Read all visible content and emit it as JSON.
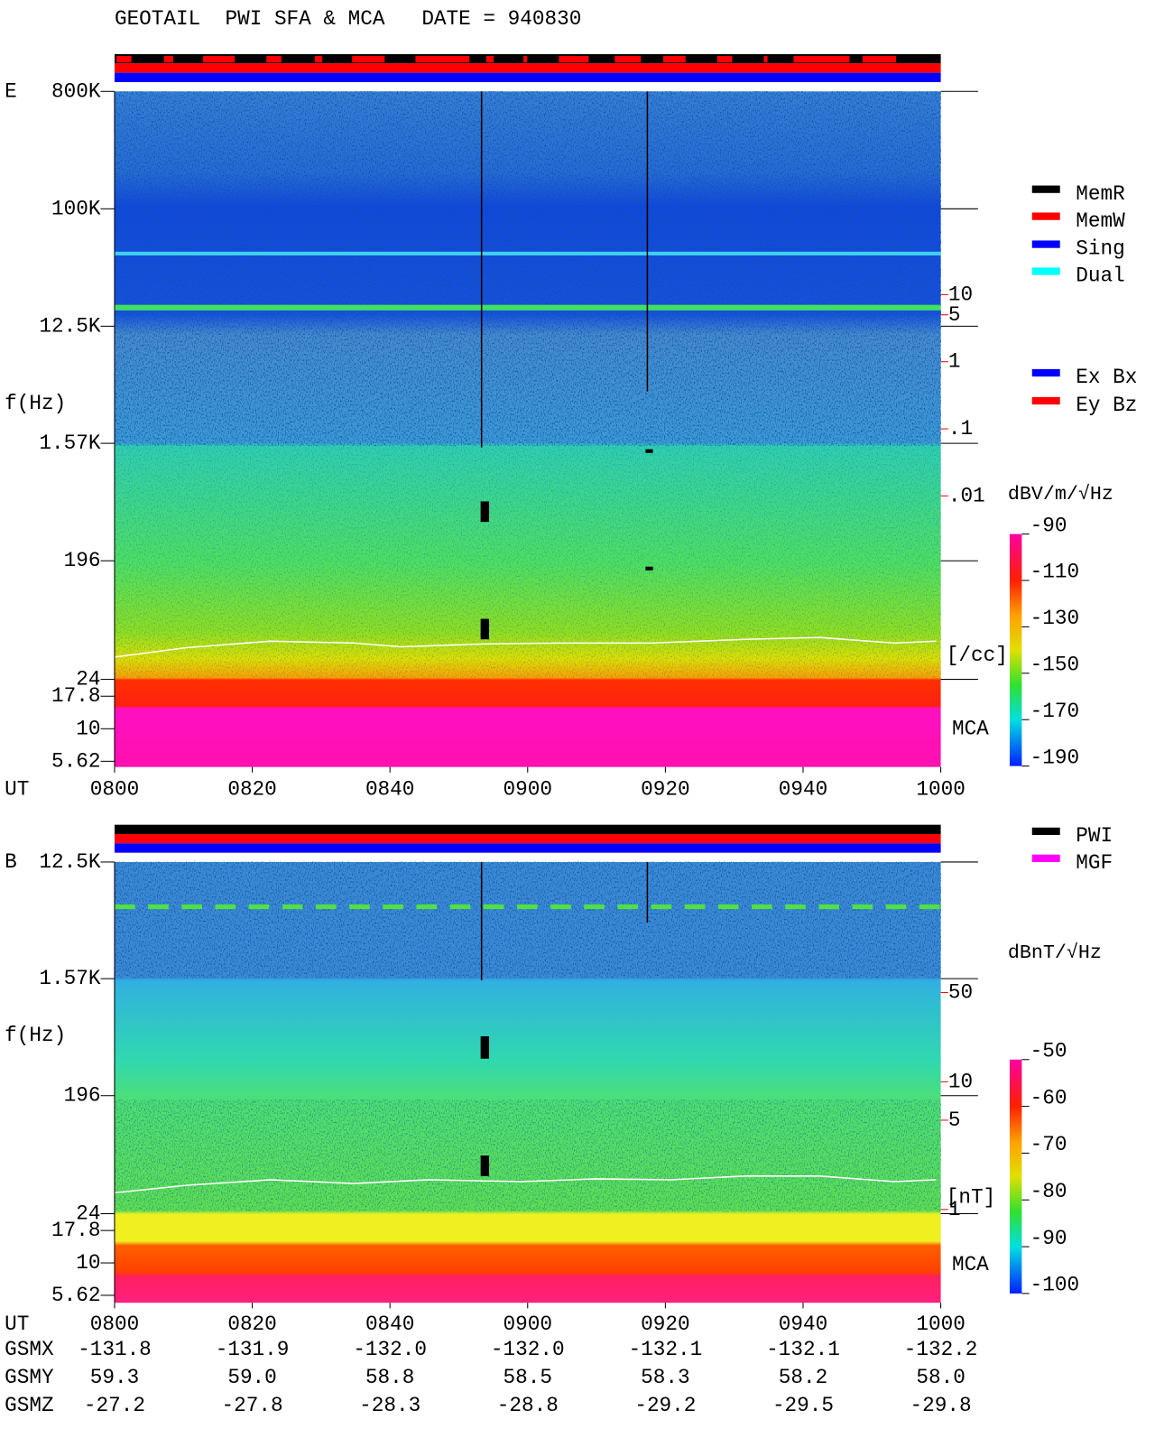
{
  "title": "GEOTAIL  PWI SFA & MCA   DATE = 940830",
  "chart_data": [
    {
      "type": "spectrogram",
      "panel_label": "E",
      "y_label": "f(Hz)",
      "x_label": "UT",
      "log_scale": true,
      "xlim": [
        0,
        120
      ],
      "xticks": [
        {
          "value": 0,
          "label": "0800"
        },
        {
          "value": 20,
          "label": "0820"
        },
        {
          "value": 40,
          "label": "0840"
        },
        {
          "value": 60,
          "label": "0900"
        },
        {
          "value": 80,
          "label": "0920"
        },
        {
          "value": 100,
          "label": "0940"
        },
        {
          "value": 120,
          "label": "1000"
        }
      ],
      "ylim": [
        5.08,
        800000
      ],
      "yticks": [
        {
          "value": 800000,
          "label": "800K"
        },
        {
          "value": 100000,
          "label": "100K"
        },
        {
          "value": 12500,
          "label": "12.5K"
        },
        {
          "value": 1570,
          "label": "1.57K"
        },
        196,
        24,
        17.8,
        10,
        5.62
      ],
      "y2lim": [
        9.1e-07,
        10700
      ],
      "y2ticks": [
        10,
        5,
        1,
        {
          "value": 0.1,
          "label": ".1"
        },
        {
          "value": 0.01,
          "label": ".01"
        }
      ],
      "y2_label": "[/cc]",
      "y2_color": "#ff0000",
      "mca_label": "MCA",
      "colorbar": {
        "label": "dBV/m/√Hz",
        "lim": [
          -190,
          -90
        ],
        "ticks": [
          -90,
          -110,
          -130,
          -150,
          -170,
          -190
        ]
      },
      "status_legend": [
        {
          "name": "MemR",
          "color": "#000000"
        },
        {
          "name": "MemW",
          "color": "#ff0000"
        },
        {
          "name": "Sing",
          "color": "#0000ff"
        },
        {
          "name": "Dual",
          "color": "#00ffff"
        }
      ],
      "mode_legend": [
        {
          "name": "Ex Bx",
          "color": "#0000ff"
        },
        {
          "name": "Ey Bz",
          "color": "#ff0000"
        }
      ]
    },
    {
      "type": "spectrogram",
      "panel_label": "B",
      "y_label": "f(Hz)",
      "x_label": "UT",
      "log_scale": true,
      "xlim": [
        0,
        120
      ],
      "xticks": [
        {
          "value": 0,
          "label": "0800"
        },
        {
          "value": 20,
          "label": "0820"
        },
        {
          "value": 40,
          "label": "0840"
        },
        {
          "value": 60,
          "label": "0900"
        },
        {
          "value": 80,
          "label": "0920"
        },
        {
          "value": 100,
          "label": "0940"
        },
        {
          "value": 120,
          "label": "1000"
        }
      ],
      "ylim": [
        4.92,
        12500
      ],
      "yticks": [
        {
          "value": 12500,
          "label": "12.5K"
        },
        {
          "value": 1570,
          "label": "1.57K"
        },
        196,
        24,
        17.8,
        10,
        5.62
      ],
      "y2lim": [
        0.186,
        525
      ],
      "y2ticks": [
        50,
        10,
        5,
        1
      ],
      "y2_label": "[nT]",
      "y2_color": "#ff0000",
      "mca_label": "MCA",
      "colorbar": {
        "label": "dBnT/√Hz",
        "lim": [
          -100,
          -50
        ],
        "ticks": [
          -50,
          -60,
          -70,
          -80,
          -90,
          -100
        ]
      },
      "status_legend": [
        {
          "name": "PWI",
          "color": "#000000"
        },
        {
          "name": "MGF",
          "color": "#ff00ff"
        }
      ]
    }
  ],
  "orbit": [
    {
      "name": "GSMX",
      "values": [
        "-131.8",
        "-131.9",
        "-132.0",
        "-132.0",
        "-132.1",
        "-132.1",
        "-132.2"
      ]
    },
    {
      "name": "GSMY",
      "values": [
        "59.3",
        "59.0",
        "58.8",
        "58.5",
        "58.3",
        "58.2",
        "58.0"
      ]
    },
    {
      "name": "GSMZ",
      "values": [
        "-27.2",
        "-27.8",
        "-28.3",
        "-28.8",
        "-29.2",
        "-29.5",
        "-29.8"
      ]
    }
  ]
}
